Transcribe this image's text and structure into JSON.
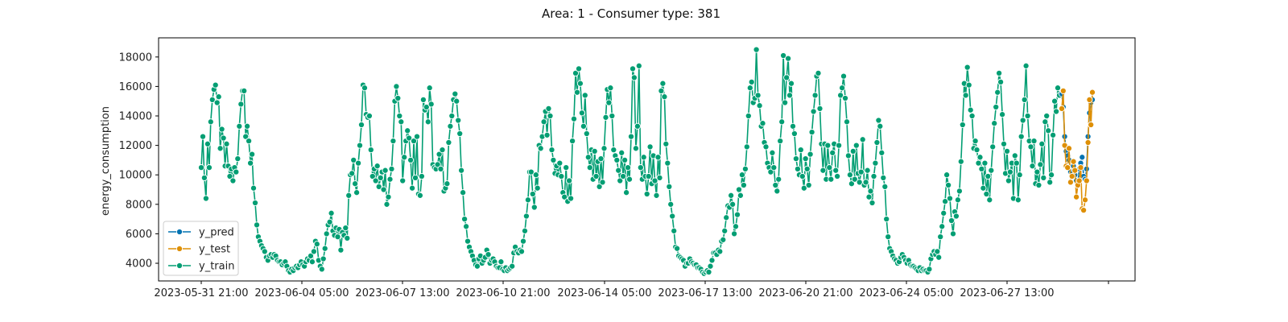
{
  "chart_data": {
    "type": "line",
    "title": "Area: 1 - Consumer type: 381",
    "xlabel": "",
    "ylabel": "energy_consumption",
    "x_tick_labels": [
      "2023-05-31 21:00",
      "2023-06-04 05:00",
      "2023-06-07 13:00",
      "2023-06-10 21:00",
      "2023-06-14 05:00",
      "2023-06-17 13:00",
      "2023-06-20 21:00",
      "2023-06-24 05:00",
      "2023-06-27 13:00",
      ""
    ],
    "y_ticks": [
      4000,
      6000,
      8000,
      10000,
      12000,
      14000,
      16000,
      18000
    ],
    "ylim": [
      2800,
      19300
    ],
    "xlim": [
      "2023-05-31 15:00",
      "2023-07-01 09:00"
    ],
    "x_step": "hourly-ish (estimated)",
    "legend": {
      "position": "lower-left",
      "entries": [
        "y_pred",
        "y_test",
        "y_train"
      ]
    },
    "grid": false,
    "series": [
      {
        "name": "y_train",
        "color": "#029e73",
        "x_start": "2023-06-01 00:00",
        "note_values": "estimated from plot, daily cycles",
        "values": [
          10500,
          12600,
          9800,
          8400,
          12100,
          10500,
          13600,
          15100,
          15800,
          16100,
          14900,
          15300,
          11800,
          13100,
          12500,
          10600,
          12100,
          10600,
          9900,
          10400,
          9600,
          10500,
          10200,
          11100,
          13300,
          14800,
          15700,
          15700,
          12600,
          13300,
          12300,
          10800,
          11400,
          9100,
          8100,
          6600,
          5800,
          5500,
          5200,
          5000,
          4800,
          4400,
          4200,
          4500,
          4600,
          4400,
          4600,
          4500,
          4200,
          4100,
          4100,
          3900,
          4000,
          4100,
          3800,
          3500,
          3400,
          3600,
          3500,
          3700,
          3800,
          3700,
          3900,
          4100,
          3900,
          3800,
          4100,
          4300,
          4200,
          4500,
          4100,
          4800,
          5500,
          5300,
          4200,
          3800,
          3600,
          4300,
          5000,
          6000,
          6600,
          6800,
          7400,
          6200,
          5900,
          6400,
          5800,
          6300,
          4900,
          6100,
          5900,
          6400,
          5700,
          8600,
          10000,
          10100,
          11000,
          9400,
          8800,
          10800,
          12000,
          13400,
          16100,
          15900,
          14100,
          13900,
          14000,
          11700,
          9900,
          10400,
          9600,
          10600,
          9200,
          9800,
          10200,
          9000,
          10300,
          8000,
          8500,
          9700,
          10400,
          12300,
          15000,
          16000,
          15200,
          14000,
          13600,
          9600,
          11200,
          12300,
          13000,
          12500,
          11000,
          9100,
          12300,
          9800,
          12600,
          8700,
          8600,
          9900,
          15100,
          14400,
          14600,
          13600,
          15900,
          14800,
          10700,
          10500,
          10400,
          10700,
          11400,
          10400,
          11700,
          8900,
          9100,
          9400,
          12200,
          13300,
          14000,
          15100,
          15500,
          15000,
          13700,
          12800,
          10300,
          8800,
          7000,
          6500,
          5500,
          5100,
          4800,
          4500,
          4200,
          3900,
          3800,
          4300,
          4500,
          4000,
          4200,
          4400,
          4900,
          4600,
          4000,
          4200,
          4300,
          4100,
          3800,
          3700,
          3700,
          4100,
          3600,
          3500,
          3700,
          3500,
          3600,
          3700,
          3800,
          4700,
          5100,
          4800,
          4700,
          4900,
          4800,
          5500,
          6200,
          7200,
          8300,
          10200,
          10200,
          8700,
          7800,
          10000,
          9100,
          12000,
          11800,
          12600,
          13600,
          14300,
          12700,
          14500,
          14000,
          11700,
          11000,
          10100,
          10600,
          10000,
          10800,
          9900,
          8800,
          8500,
          10500,
          8200,
          9600,
          8400,
          12300,
          13800,
          16900,
          15600,
          17200,
          16200,
          14200,
          13300,
          15400,
          12800,
          11200,
          10500,
          11700,
          9700,
          11600,
          9900,
          10900,
          9200,
          11100,
          9500,
          11800,
          13900,
          15800,
          14900,
          15900,
          14000,
          11700,
          11300,
          11000,
          10300,
          9600,
          11500,
          9900,
          11000,
          8800,
          10500,
          9700,
          12600,
          17200,
          16600,
          11800,
          13300,
          17400,
          10500,
          9700,
          11200,
          9900,
          8700,
          9900,
          11900,
          9400,
          11300,
          9600,
          8600,
          11200,
          9800,
          15700,
          16200,
          15300,
          12100,
          10800,
          9200,
          8000,
          7200,
          6200,
          5100,
          5000,
          4500,
          4400,
          4300,
          4200,
          3800,
          4000,
          4000,
          4300,
          4100,
          4000,
          3900,
          3900,
          3700,
          3700,
          3600,
          3400,
          3300,
          3400,
          3500,
          3400,
          3800,
          4200,
          4700,
          4700,
          4600,
          4900,
          4800,
          5500,
          5600,
          6200,
          7100,
          7900,
          7800,
          8600,
          8000,
          6000,
          6500,
          7300,
          9000,
          8600,
          10000,
          9300,
          10400,
          11900,
          14000,
          15900,
          16300,
          14900,
          15200,
          18500,
          15400,
          14700,
          13300,
          13500,
          12200,
          11900,
          10800,
          10500,
          10200,
          11500,
          10500,
          9300,
          8900,
          9700,
          12300,
          13600,
          18100,
          14900,
          16600,
          17900,
          15400,
          16200,
          13300,
          12800,
          11100,
          10400,
          10000,
          11700,
          9900,
          9100,
          11100,
          10400,
          9300,
          11400,
          12900,
          14300,
          15400,
          16700,
          16900,
          14500,
          12100,
          10300,
          12100,
          9700,
          12000,
          10500,
          9700,
          11500,
          12100,
          10300,
          9900,
          12000,
          15400,
          15900,
          16700,
          15200,
          13600,
          11300,
          10000,
          9400,
          11600,
          9700,
          12000,
          10100,
          9500,
          10200,
          12400,
          9300,
          9500,
          10300,
          8500,
          8900,
          8100,
          9900,
          10800,
          12200,
          13700,
          13300,
          11500,
          9800,
          9200,
          7000,
          5800,
          5000,
          4800,
          4500,
          4300,
          4200,
          4000,
          4100,
          4400,
          4600,
          4400,
          4200,
          4000,
          4200,
          3900,
          3800,
          3800,
          3700,
          3600,
          3500,
          3700,
          3500,
          3600,
          3500,
          3500,
          3400,
          3600,
          4300,
          4600,
          4800,
          4600,
          4800,
          4400,
          5800,
          6500,
          7400,
          8200,
          10000,
          9300,
          8400,
          6900,
          6000,
          7500,
          7200,
          8300,
          8900,
          10900,
          13400,
          16200,
          15400,
          17300,
          16100,
          14400,
          14000,
          11800,
          12300,
          11700,
          10800,
          11200,
          10400,
          9100,
          10800,
          8700,
          9900,
          8300,
          10300,
          11900,
          13500,
          14600,
          15600,
          16900,
          16300,
          14100,
          12100,
          10100,
          11600,
          9600,
          10200,
          10800,
          8400,
          11300,
          10800,
          8300,
          10000,
          12600,
          13700,
          15100,
          17400,
          14000,
          12300,
          11900,
          10600,
          12300,
          9400,
          10200,
          9300,
          10700,
          12100,
          9800,
          13600,
          14000,
          13000,
          9500,
          10000,
          12700,
          15000,
          14300,
          15900,
          15400
        ]
      },
      {
        "name": "y_test",
        "color": "#de8f05",
        "values": [
          14500,
          15700,
          12000,
          10600,
          10500,
          11800,
          9500,
          9900,
          10900,
          10300,
          8500,
          9300,
          9600,
          10500,
          7700,
          7600,
          8300,
          9600,
          12200,
          15100,
          13400,
          15600
        ]
      },
      {
        "name": "y_pred",
        "color": "#0173b2",
        "values": [
          15500,
          14600,
          12600,
          11600,
          11300,
          11000,
          10200,
          10100,
          10600,
          10000,
          9600,
          9500,
          10400,
          10800,
          11200,
          9900,
          9700,
          10400,
          12600,
          14200,
          14900,
          15100
        ]
      }
    ]
  }
}
